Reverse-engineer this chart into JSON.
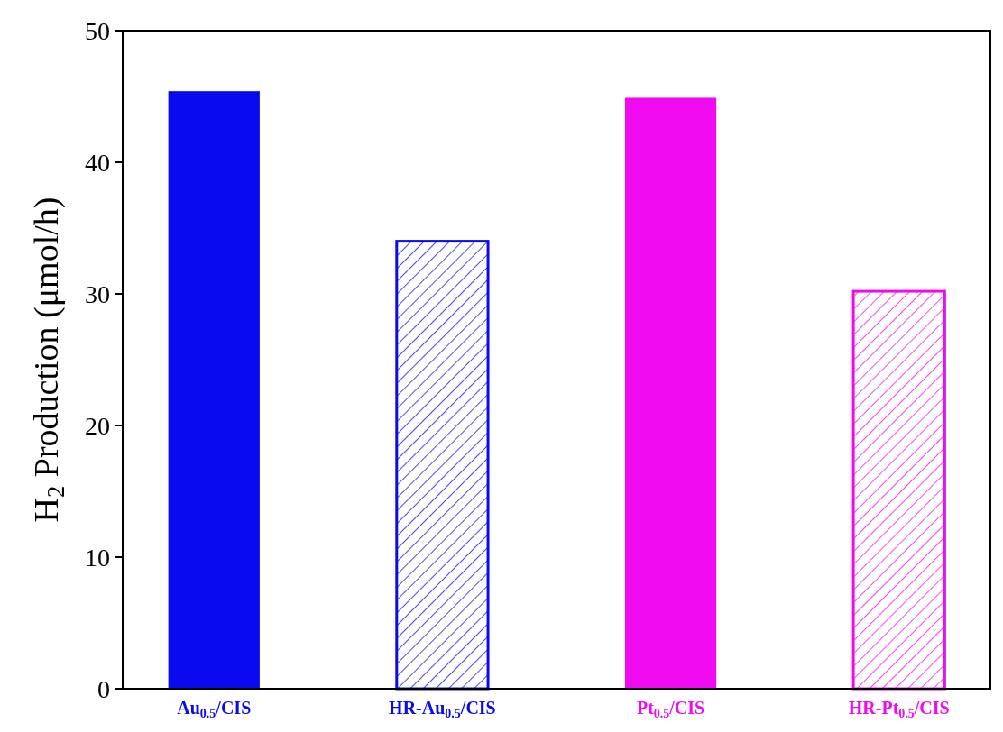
{
  "chart_data": {
    "type": "bar",
    "ylabel": "H$_{2}$ Production (μmol/h)",
    "categories": [
      "Au$_{0.5}$/CIS",
      "HR-Au$_{0.5}$/CIS",
      "Pt$_{0.5}$/CIS",
      "HR-Pt$_{0.5}$/CIS"
    ],
    "values": [
      45.4,
      34.0,
      44.9,
      30.2
    ],
    "colors": [
      "#0a0af0",
      "#0a0af0",
      "#f00af0",
      "#f00af0"
    ],
    "ylim": [
      0,
      50
    ],
    "yticks": [
      0,
      10,
      20,
      30,
      40,
      50
    ],
    "grid": false
  }
}
